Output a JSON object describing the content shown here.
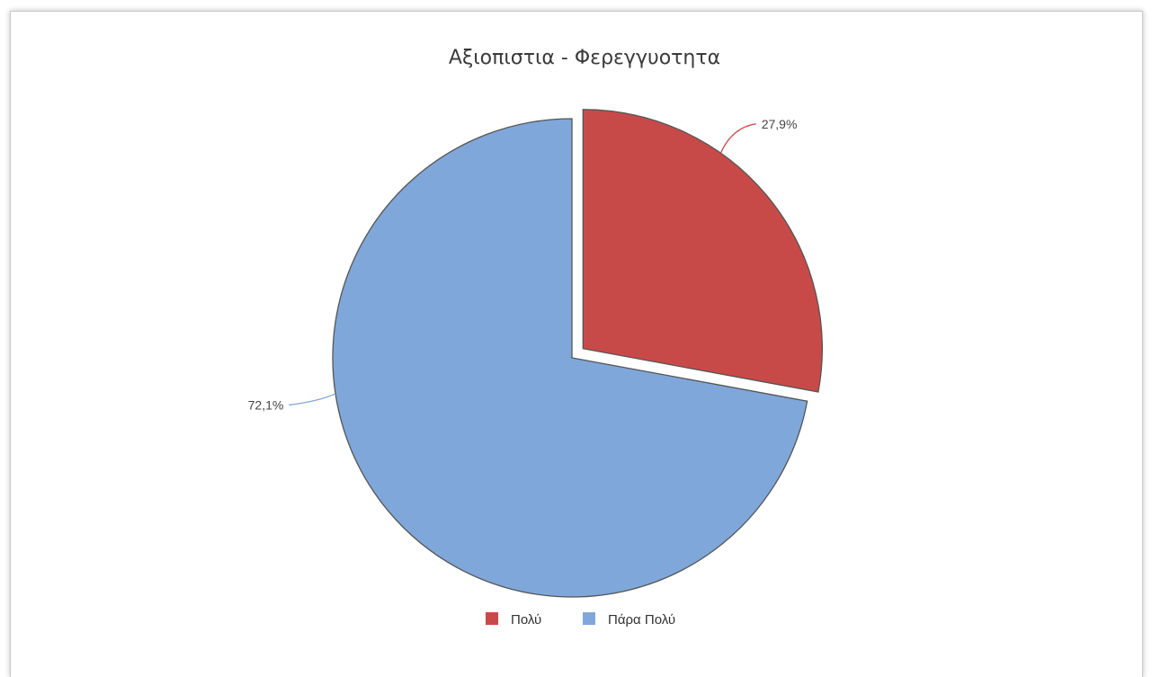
{
  "chart_data": {
    "type": "pie",
    "title": "Αξιοπιστια - Φερεγγυοτητα",
    "categories": [
      "Πολύ",
      "Πάρα Πολύ"
    ],
    "values": [
      27.9,
      72.1
    ],
    "data_labels": [
      "27,9%",
      "72,1%"
    ],
    "colors": [
      "#c84a48",
      "#7fa7da"
    ],
    "exploded": [
      true,
      false
    ],
    "legend_position": "bottom",
    "start_angle": "12 o'clock, clockwise"
  }
}
